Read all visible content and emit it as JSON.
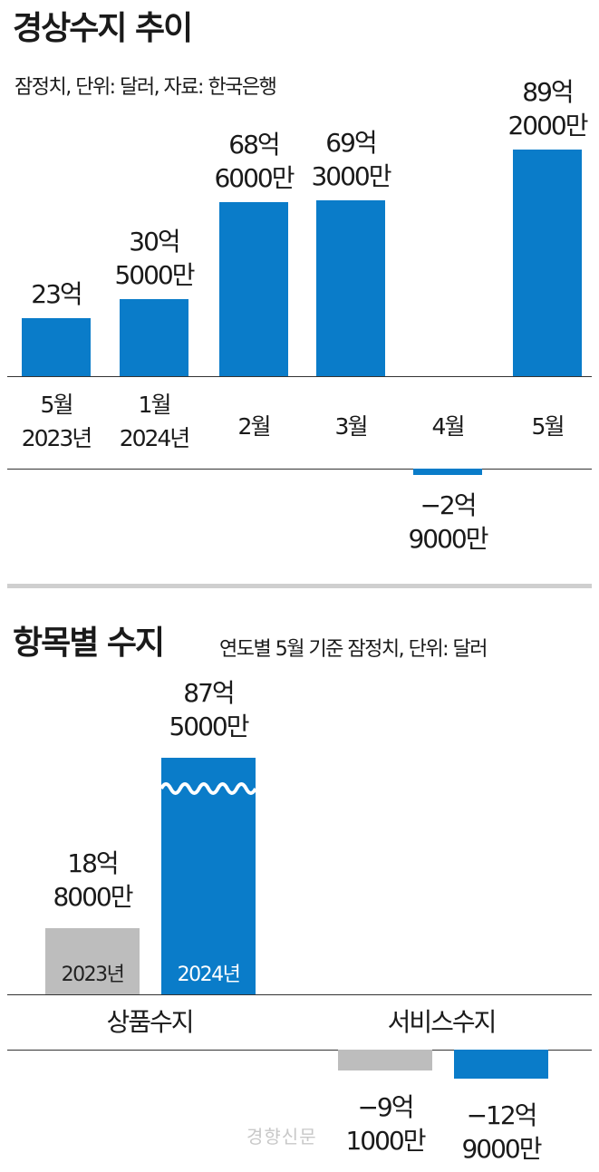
{
  "colors": {
    "blue": "#0a7cc9",
    "gray": "#bdbdbd",
    "text": "#1a1a1a"
  },
  "section1": {
    "title": "경상수지 추이",
    "subtitle": "잠정치, 단위: 달러, 자료: 한국은행"
  },
  "section2": {
    "title": "항목별 수지",
    "subtitle": "연도별 5월 기준 잠정치, 단위: 달러"
  },
  "watermark": "경향신문",
  "chart_data": [
    {
      "type": "bar",
      "title": "경상수지 추이",
      "subtitle": "잠정치, 단위: 달러, 자료: 한국은행",
      "unit": "억 달러",
      "categories": [
        {
          "line1": "5월",
          "line2": "2023년"
        },
        {
          "line1": "1월",
          "line2": "2024년"
        },
        {
          "line1": "2월",
          "line2": ""
        },
        {
          "line1": "3월",
          "line2": ""
        },
        {
          "line1": "4월",
          "line2": ""
        },
        {
          "line1": "5월",
          "line2": ""
        }
      ],
      "values": [
        23,
        30.5,
        68.6,
        69.3,
        -2.9,
        89.2
      ],
      "data_labels": [
        {
          "line1": "23억",
          "line2": ""
        },
        {
          "line1": "30억",
          "line2": "5000만"
        },
        {
          "line1": "68억",
          "line2": "6000만"
        },
        {
          "line1": "69억",
          "line2": "3000만"
        },
        {
          "line1": "−2억",
          "line2": "9000만"
        },
        {
          "line1": "89억",
          "line2": "2000만"
        }
      ],
      "grid": false,
      "legend": "none"
    },
    {
      "type": "bar",
      "title": "항목별 수지",
      "subtitle": "연도별 5월 기준 잠정치, 단위: 달러",
      "unit": "억 달러",
      "axis_break": true,
      "categories": [
        "상품수지",
        "서비스수지"
      ],
      "series": [
        {
          "name": "2023년",
          "values": [
            18.8,
            -9.1
          ]
        },
        {
          "name": "2024년",
          "values": [
            87.5,
            -12.9
          ]
        }
      ],
      "data_labels": {
        "2023년": [
          {
            "line1": "18억",
            "line2": "8000만"
          },
          {
            "line1": "−9억",
            "line2": "1000만"
          }
        ],
        "2024년": [
          {
            "line1": "87억",
            "line2": "5000만"
          },
          {
            "line1": "−12억",
            "line2": "9000만"
          }
        ]
      },
      "grid": false,
      "legend": "inside-bars"
    }
  ]
}
